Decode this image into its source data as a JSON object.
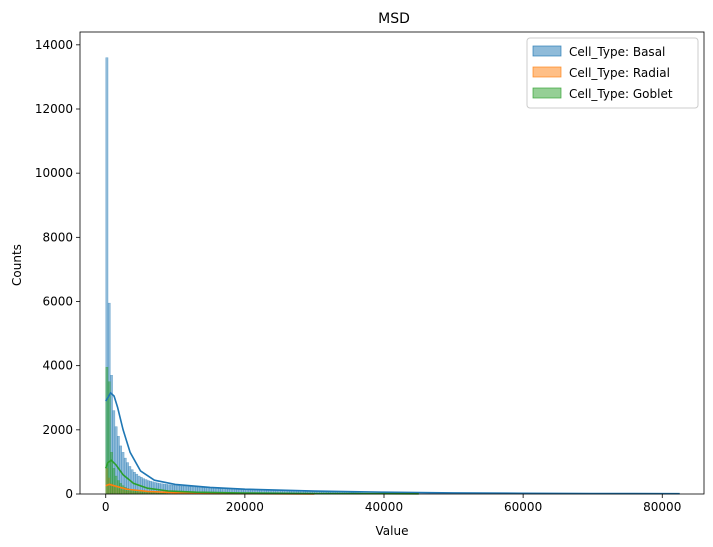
{
  "chart_data": {
    "type": "histogram",
    "title": "MSD",
    "xlabel": "Value",
    "ylabel": "Counts",
    "xlim": [
      -3700,
      86000
    ],
    "ylim": [
      0,
      14400
    ],
    "xticks": [
      0,
      20000,
      40000,
      60000,
      80000
    ],
    "yticks": [
      0,
      2000,
      4000,
      6000,
      8000,
      10000,
      12000,
      14000
    ],
    "legend_position": "top-right",
    "bin_width": 330,
    "series": [
      {
        "name": "Cell_Type: Basal",
        "color": "#1f77b4",
        "bins_start": 0,
        "counts": [
          13600,
          5950,
          3700,
          2600,
          2100,
          1800,
          1500,
          1300,
          1120,
          980,
          860,
          760,
          680,
          620,
          560,
          520,
          480,
          450,
          420,
          400,
          380,
          360,
          345,
          330,
          320,
          310,
          300,
          290,
          282,
          275,
          268,
          260,
          254,
          248,
          242,
          236,
          230,
          225,
          220,
          215,
          210,
          205,
          200,
          196,
          192,
          188,
          184,
          180,
          176,
          172,
          168,
          164,
          160,
          157,
          154,
          151,
          148,
          145,
          142,
          139,
          136,
          133,
          130,
          128,
          126,
          124,
          122,
          120,
          118,
          116,
          114,
          112,
          110,
          108,
          106,
          104,
          102,
          100,
          98,
          96,
          94,
          92,
          90,
          88,
          86,
          84,
          82,
          80,
          78,
          76,
          74,
          72,
          70,
          68,
          66,
          64,
          62,
          60,
          58,
          56,
          54,
          52,
          50,
          48,
          46,
          44,
          42,
          40,
          38,
          36,
          34,
          32,
          30,
          28,
          26,
          24,
          22,
          20,
          18,
          16,
          14,
          12,
          10
        ],
        "kde": [
          [
            0,
            2900
          ],
          [
            300,
            3000
          ],
          [
            700,
            3150
          ],
          [
            1200,
            3050
          ],
          [
            1700,
            2700
          ],
          [
            2500,
            2000
          ],
          [
            3500,
            1300
          ],
          [
            5000,
            720
          ],
          [
            7000,
            430
          ],
          [
            10000,
            300
          ],
          [
            15000,
            205
          ],
          [
            20000,
            150
          ],
          [
            30000,
            90
          ],
          [
            40000,
            55
          ],
          [
            50000,
            35
          ],
          [
            60000,
            22
          ],
          [
            70000,
            15
          ],
          [
            82500,
            10
          ]
        ]
      },
      {
        "name": "Cell_Type: Radial",
        "color": "#ff7f0e",
        "bins_start": 0,
        "counts": [
          800,
          500,
          320,
          240,
          190,
          160,
          135,
          115,
          100,
          90,
          80,
          72,
          65,
          58,
          52,
          48,
          44,
          40,
          37,
          34,
          31,
          28,
          26,
          24,
          22,
          20,
          18,
          16,
          14,
          12,
          10
        ],
        "kde": [
          [
            0,
            260
          ],
          [
            500,
            300
          ],
          [
            1500,
            240
          ],
          [
            3000,
            150
          ],
          [
            6000,
            80
          ],
          [
            10000,
            40
          ],
          [
            15000,
            20
          ],
          [
            20000,
            10
          ],
          [
            30000,
            4
          ]
        ]
      },
      {
        "name": "Cell_Type: Goblet",
        "color": "#2ca02c",
        "bins_start": 0,
        "counts": [
          3950,
          3500,
          1300,
          800,
          560,
          420,
          330,
          260,
          210,
          175,
          150,
          130,
          115,
          100,
          90,
          80,
          72,
          64,
          57,
          50,
          44,
          38,
          33,
          28,
          24,
          20,
          16,
          12
        ],
        "kde": [
          [
            0,
            800
          ],
          [
            300,
            980
          ],
          [
            800,
            1050
          ],
          [
            1500,
            900
          ],
          [
            2500,
            600
          ],
          [
            4000,
            330
          ],
          [
            6000,
            180
          ],
          [
            9000,
            95
          ],
          [
            13000,
            55
          ],
          [
            20000,
            30
          ],
          [
            30000,
            15
          ],
          [
            45000,
            6
          ]
        ]
      }
    ]
  }
}
